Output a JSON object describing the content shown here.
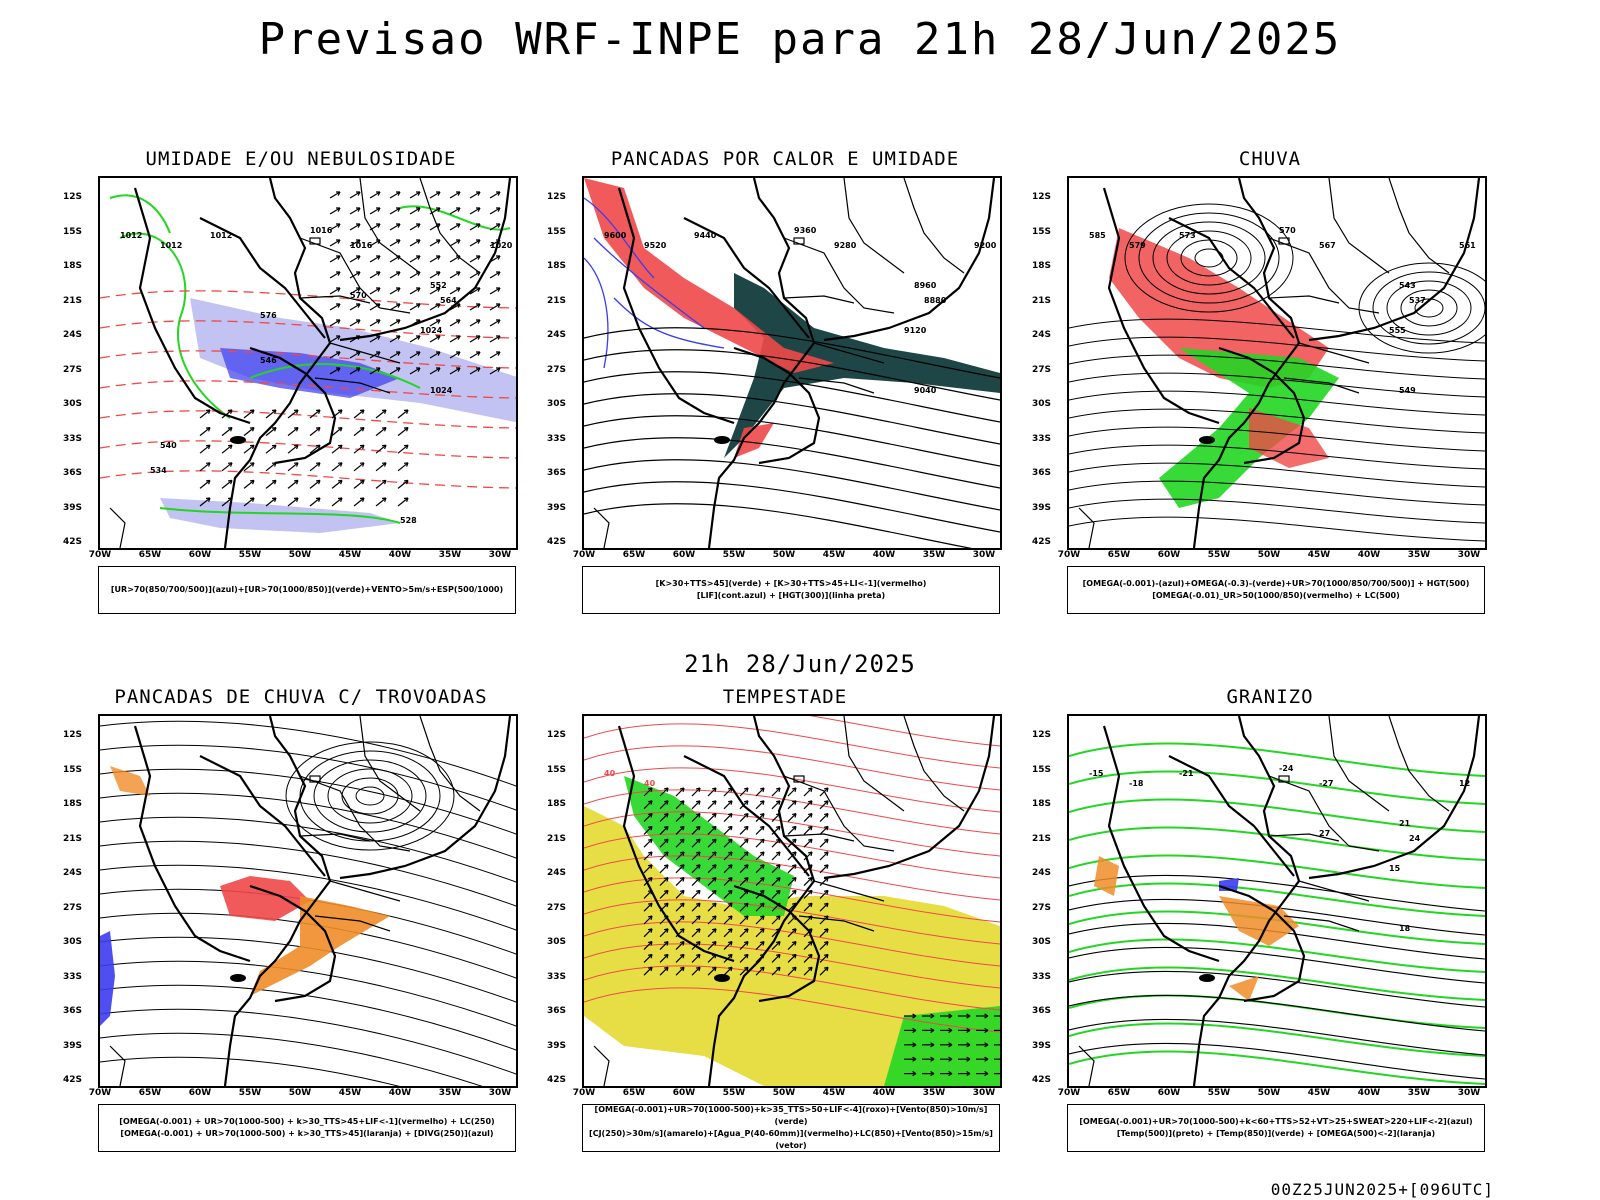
{
  "header": {
    "title": "Previsao WRF-INPE  para 21h 28/Jun/2025",
    "middle_title": "21h 28/Jun/2025",
    "footer_code": "00Z25JUN2025+[096UTC]"
  },
  "axes": {
    "lat_labels": [
      "12S",
      "15S",
      "18S",
      "21S",
      "24S",
      "27S",
      "30S",
      "33S",
      "36S",
      "39S",
      "42S"
    ],
    "lon_labels": [
      "70W",
      "65W",
      "60W",
      "55W",
      "50W",
      "45W",
      "40W",
      "35W",
      "30W"
    ]
  },
  "colors": {
    "azul": "#3b3bf0",
    "verde": "#22d622",
    "vermelho": "#f04848",
    "laranja": "#f08c28",
    "amarelo": "#e6dc3c",
    "lavanda": "#b4b4f0",
    "verde_escuro": "#1e4646",
    "linha_preta": "#000000"
  },
  "panels": [
    {
      "title": "UMIDADE E/OU NEBULOSIDADE",
      "legend": [
        "[UR>70(850/700/500)](azul)+[UR>70(1000/850)](verde)+VENTO>5m/s+ESP(500/1000)"
      ],
      "contour_labels": [
        "1012",
        "1012",
        "1012",
        "1016",
        "1016",
        "1020",
        "1024",
        "1024",
        "552",
        "564",
        "570",
        "576",
        "546",
        "540",
        "534",
        "528"
      ]
    },
    {
      "title": "PANCADAS POR CALOR E UMIDADE",
      "legend": [
        "[K>30+TTS>45](verde) + [K>30+TTS>45+LI<-1](vermelho)",
        "[LIF](cont.azul) + [HGT(300)](linha preta)"
      ],
      "contour_labels": [
        "9600",
        "9520",
        "9440",
        "9360",
        "9280",
        "9200",
        "9120",
        "9040",
        "8960",
        "8880"
      ]
    },
    {
      "title": "CHUVA",
      "legend": [
        "[OMEGA(-0.001)-(azul)+OMEGA(-0.3)-(verde)+UR>70(1000/850/700/500)] + HGT(500)",
        "[OMEGA(-0.01)_UR>50(1000/850)(vermelho) + LC(500)"
      ],
      "contour_labels": [
        "585",
        "579",
        "573",
        "570",
        "567",
        "561",
        "555",
        "549",
        "543",
        "537"
      ]
    },
    {
      "title": "PANCADAS DE CHUVA C/ TROVOADAS",
      "legend": [
        "[OMEGA(-0.001) + UR>70(1000-500) + k>30_TTS>45+LIF<-1](vermelho) + LC(250)",
        "[OMEGA(-0.001) + UR>70(1000-500) + k>30_TTS>45](laranja) + [DIVG(250)](azul)"
      ],
      "contour_labels": []
    },
    {
      "title": "TEMPESTADE",
      "legend": [
        "[OMEGA(-0.001)+UR>70(1000-500)+k>35_TTS>50+LIF<-4](roxo)+[Vento(850)>10m/s](verde)",
        "[CJ(250)>30m/s](amarelo)+[Agua_P(40-60mm)](vermelho)+LC(850)+[Vento(850)>15m/s](vetor)"
      ],
      "contour_labels": [
        "40",
        "40"
      ]
    },
    {
      "title": "GRANIZO",
      "legend": [
        "[OMEGA(-0.001)+UR>70(1000-500)+k<60+TTS>52+VT>25+SWEAT>220+LIF<-2](azul)",
        "[Temp(500)](preto) + [Temp(850)](verde) + [OMEGA(500)<-2](laranja)"
      ],
      "contour_labels": [
        "-15",
        "-18",
        "-21",
        "-24",
        "-27",
        "12",
        "15",
        "18",
        "21",
        "24",
        "27"
      ]
    }
  ]
}
